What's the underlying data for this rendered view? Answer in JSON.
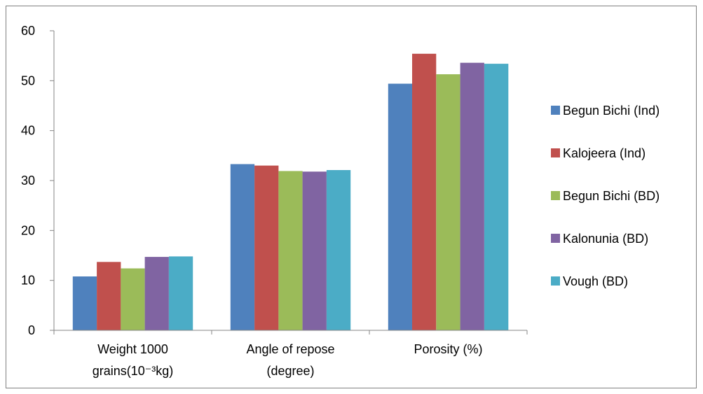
{
  "chart_data": {
    "type": "bar",
    "title": "",
    "xlabel": "",
    "ylabel": "",
    "ylim": [
      0,
      60
    ],
    "yticks": [
      "0",
      "10",
      "20",
      "30",
      "40",
      "50",
      "60"
    ],
    "grid": false,
    "legend_position": "right",
    "categories": [
      [
        "Weight 1000",
        "grains(10⁻³kg)"
      ],
      [
        "Angle of repose",
        "(degree)"
      ],
      [
        "Porosity (%)"
      ]
    ],
    "series": [
      {
        "name": "Begun Bichi (Ind)",
        "color": "#4F81BD",
        "values": [
          10.8,
          33.3,
          49.4
        ]
      },
      {
        "name": "Kalojeera (Ind)",
        "color": "#C0504D",
        "values": [
          13.7,
          33.0,
          55.4
        ]
      },
      {
        "name": "Begun Bichi (BD)",
        "color": "#9BBB59",
        "values": [
          12.4,
          31.9,
          51.3
        ]
      },
      {
        "name": "Kalonunia (BD)",
        "color": "#8064A2",
        "values": [
          14.7,
          31.8,
          53.6
        ]
      },
      {
        "name": "Vough (BD)",
        "color": "#4BACC6",
        "values": [
          14.8,
          32.1,
          53.4
        ]
      }
    ]
  }
}
